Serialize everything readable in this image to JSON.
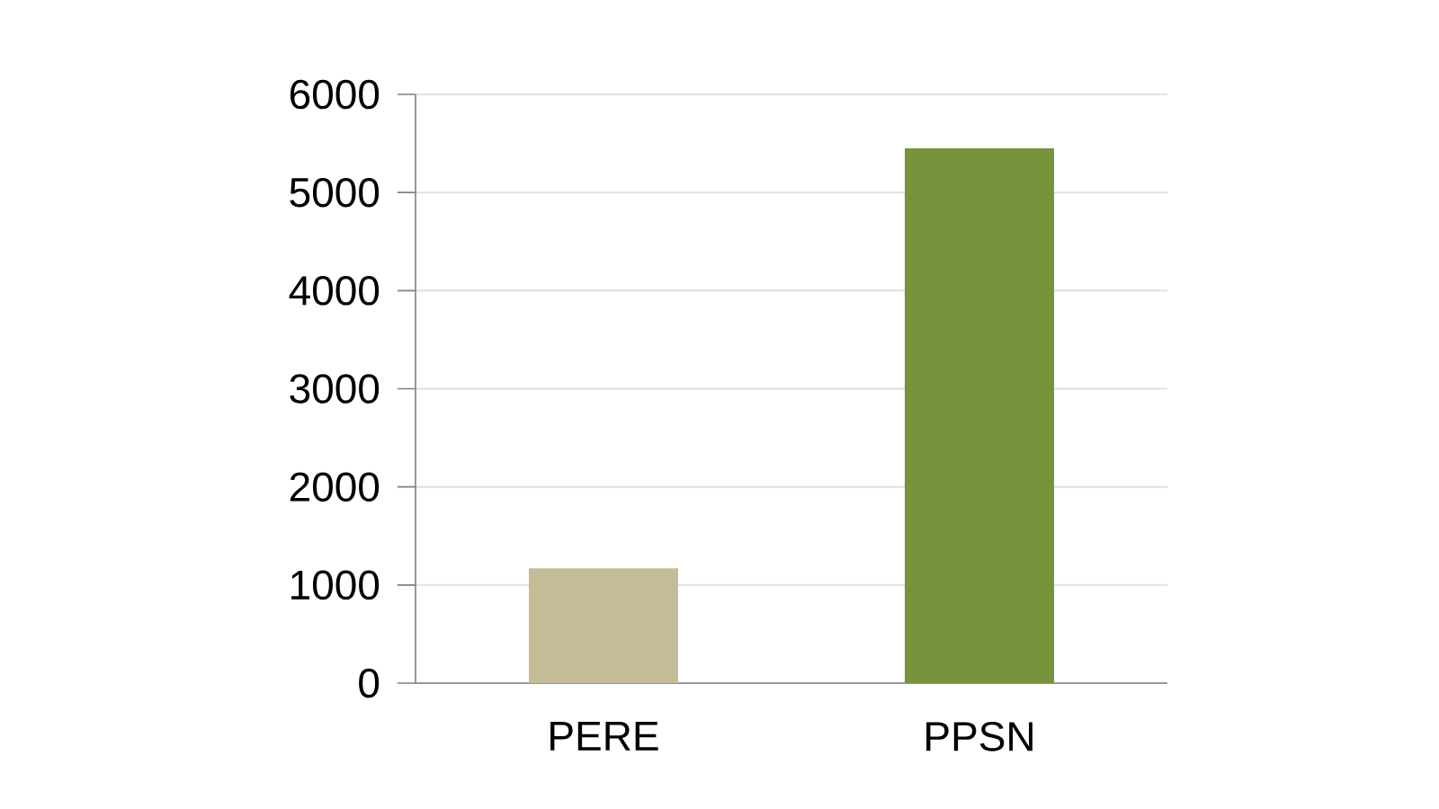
{
  "chart_data": {
    "type": "bar",
    "categories": [
      "PERE",
      "PPSN"
    ],
    "values": [
      1170,
      5450
    ],
    "colors": [
      "#c4bc96",
      "#77933c"
    ],
    "ylim": [
      0,
      6000
    ],
    "yticks": [
      0,
      1000,
      2000,
      3000,
      4000,
      5000,
      6000
    ],
    "grid": "y"
  }
}
